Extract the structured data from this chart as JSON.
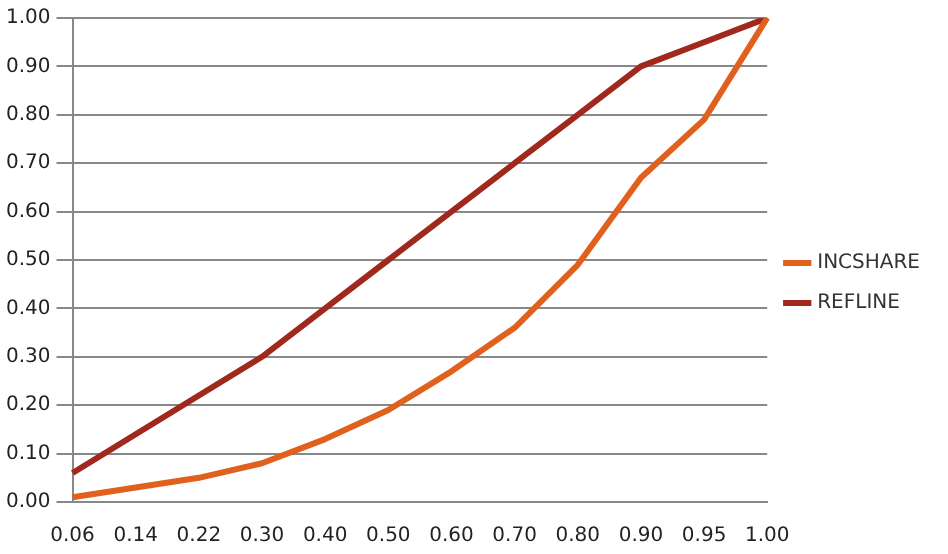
{
  "chart_data": {
    "type": "line",
    "categories": [
      "0.06",
      "0.14",
      "0.22",
      "0.30",
      "0.40",
      "0.50",
      "0.60",
      "0.70",
      "0.80",
      "0.90",
      "0.95",
      "1.00"
    ],
    "series": [
      {
        "name": "INCSHARE",
        "color": "#e0601e",
        "values": [
          0.01,
          0.03,
          0.05,
          0.08,
          0.13,
          0.19,
          0.27,
          0.36,
          0.49,
          0.67,
          0.79,
          1.0
        ]
      },
      {
        "name": "REFLINE",
        "color": "#a0281c",
        "values": [
          0.06,
          0.14,
          0.22,
          0.3,
          0.4,
          0.5,
          0.6,
          0.7,
          0.8,
          0.9,
          0.95,
          1.0
        ]
      }
    ],
    "ylim": [
      0,
      1
    ],
    "yticks": [
      {
        "value": 0,
        "label": "0.00"
      },
      {
        "value": 0.1,
        "label": "0.10"
      },
      {
        "value": 0.2,
        "label": "0.20"
      },
      {
        "value": 0.3,
        "label": "0.30"
      },
      {
        "value": 0.4,
        "label": "0.40"
      },
      {
        "value": 0.5,
        "label": "0.50"
      },
      {
        "value": 0.6,
        "label": "0.60"
      },
      {
        "value": 0.7,
        "label": "0.70"
      },
      {
        "value": 0.8,
        "label": "0.80"
      },
      {
        "value": 0.9,
        "label": "0.90"
      },
      {
        "value": 1,
        "label": "1.00"
      }
    ],
    "grid": "y",
    "legend": "right",
    "marker": "none",
    "line_style": "solid"
  }
}
